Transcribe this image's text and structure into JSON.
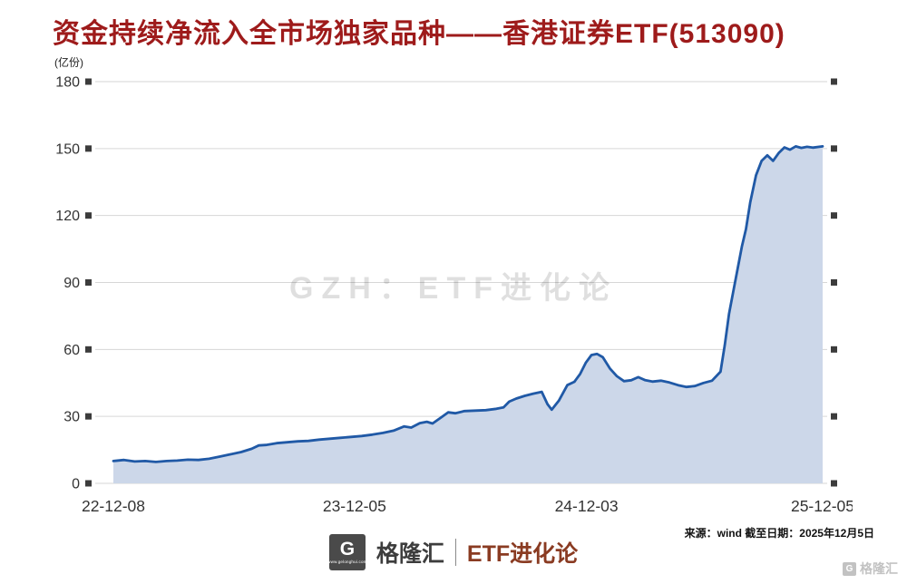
{
  "title": "资金持续净流入全市场独家品种——香港证券ETF(513090)",
  "theme": {
    "title_color": "#9e1b1b",
    "brand_series_color": "#8a3b22",
    "line_color": "#2059a6",
    "fill_color": "#ccd7e9"
  },
  "chart_data": {
    "type": "area",
    "title": "资金持续净流入全市场独家品种——香港证券ETF(513090)",
    "ylabel": "(亿份)",
    "xlabel": "",
    "ylim": [
      0,
      180
    ],
    "yticks": [
      0,
      30,
      60,
      90,
      120,
      150,
      180
    ],
    "xtick_labels": [
      "22-12-08",
      "23-12-05",
      "24-12-03",
      "25-12-05"
    ],
    "xtick_pos": [
      0,
      0.34,
      0.667,
      1
    ],
    "grid": true,
    "legend": "none",
    "watermark": "GZH：ETF进化论",
    "colors": {
      "line": "#2059a6",
      "fill": "#ccd7e9",
      "grid": "#d6d6d6",
      "tick_marker": "#3c3c3c",
      "axis_text": "#333333"
    },
    "series": [
      {
        "name": "香港证券ETF(513090)",
        "x": [
          0,
          0.015,
          0.03,
          0.045,
          0.06,
          0.075,
          0.09,
          0.105,
          0.12,
          0.135,
          0.15,
          0.165,
          0.18,
          0.195,
          0.205,
          0.215,
          0.23,
          0.245,
          0.26,
          0.275,
          0.29,
          0.305,
          0.32,
          0.335,
          0.35,
          0.365,
          0.38,
          0.395,
          0.41,
          0.42,
          0.432,
          0.442,
          0.45,
          0.462,
          0.472,
          0.482,
          0.495,
          0.51,
          0.525,
          0.54,
          0.55,
          0.558,
          0.568,
          0.58,
          0.592,
          0.604,
          0.612,
          0.618,
          0.628,
          0.64,
          0.65,
          0.658,
          0.666,
          0.674,
          0.682,
          0.69,
          0.7,
          0.71,
          0.72,
          0.73,
          0.74,
          0.75,
          0.76,
          0.772,
          0.784,
          0.796,
          0.808,
          0.82,
          0.832,
          0.844,
          0.856,
          0.862,
          0.868,
          0.874,
          0.88,
          0.886,
          0.892,
          0.898,
          0.906,
          0.914,
          0.922,
          0.93,
          0.938,
          0.946,
          0.954,
          0.962,
          0.97,
          0.978,
          0.986,
          1
        ],
        "values": [
          10,
          10.5,
          9.8,
          10,
          9.6,
          10,
          10.2,
          10.6,
          10.5,
          11,
          12,
          13,
          14,
          15.5,
          17,
          17.2,
          18,
          18.4,
          18.8,
          19,
          19.6,
          20,
          20.4,
          20.8,
          21.2,
          21.8,
          22.6,
          23.6,
          25.5,
          25,
          27,
          27.6,
          26.8,
          29.5,
          31.8,
          31.4,
          32.4,
          32.6,
          32.8,
          33.4,
          34,
          36.6,
          38,
          39.2,
          40.2,
          41,
          35.5,
          33,
          37,
          44,
          45.5,
          49,
          54,
          57.5,
          58,
          56.5,
          51.5,
          48,
          45.8,
          46.2,
          47.6,
          46.2,
          45.6,
          46,
          45.2,
          44,
          43.2,
          43.6,
          45,
          46,
          50,
          62,
          76,
          86,
          96,
          106,
          114,
          126,
          138,
          144.5,
          147,
          144.5,
          148,
          150.5,
          149.5,
          151,
          150.3,
          150.8,
          150.4,
          151
        ]
      }
    ]
  },
  "footer": {
    "logo_letter": "G",
    "brand_name": "格隆汇",
    "brand_url": "www.gelonghui.com",
    "series_name": "ETF进化论",
    "source_text": "来源：wind 截至日期：2025年12月5日",
    "corner_brand": "格隆汇"
  }
}
